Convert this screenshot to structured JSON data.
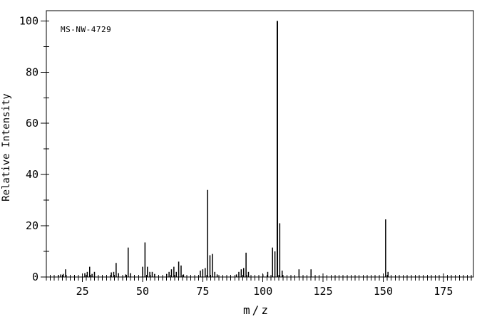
{
  "chart_data": {
    "type": "bar",
    "subtype": "mass-spectrum-stick-plot",
    "annotation": "MS-NW-4729",
    "xlabel": "m/z",
    "ylabel": "Relative Intensity",
    "xlim": [
      10,
      187.5
    ],
    "ylim": [
      0,
      104
    ],
    "x_major_ticks": [
      25,
      50,
      75,
      100,
      125,
      150,
      175
    ],
    "x_minor_tick_step": 1.6667,
    "y_major_ticks": [
      0,
      20,
      40,
      60,
      80,
      100
    ],
    "y_minor_ticks": [
      10,
      30,
      50,
      70,
      90
    ],
    "grid": "off",
    "legend": "none",
    "colors": {
      "foreground": "#000000",
      "background": "#ffffff"
    },
    "series": [
      {
        "name": "relative-intensity-vs-mz",
        "points": [
          [
            15,
            0.8
          ],
          [
            16,
            1
          ],
          [
            17,
            1.2
          ],
          [
            18,
            3
          ],
          [
            26,
            1.5
          ],
          [
            27,
            2
          ],
          [
            28,
            4
          ],
          [
            29,
            1.2
          ],
          [
            30,
            2
          ],
          [
            37,
            1.8
          ],
          [
            38,
            2
          ],
          [
            39,
            5.5
          ],
          [
            40,
            1.5
          ],
          [
            43,
            1
          ],
          [
            44,
            11.5
          ],
          [
            45,
            1.5
          ],
          [
            50,
            4
          ],
          [
            51,
            13.5
          ],
          [
            52,
            4
          ],
          [
            53,
            2
          ],
          [
            54,
            2
          ],
          [
            55,
            1.2
          ],
          [
            60,
            1.2
          ],
          [
            61,
            2
          ],
          [
            62,
            3
          ],
          [
            63,
            4
          ],
          [
            64,
            2
          ],
          [
            65,
            6
          ],
          [
            66,
            4.5
          ],
          [
            67,
            1
          ],
          [
            74,
            2.5
          ],
          [
            75,
            3
          ],
          [
            76,
            3.5
          ],
          [
            77,
            34
          ],
          [
            78,
            8.5
          ],
          [
            79,
            9
          ],
          [
            80,
            2
          ],
          [
            81,
            1
          ],
          [
            89,
            1
          ],
          [
            90,
            2
          ],
          [
            91,
            3
          ],
          [
            92,
            3.5
          ],
          [
            93,
            9.5
          ],
          [
            94,
            2
          ],
          [
            100,
            1
          ],
          [
            102,
            2
          ],
          [
            104,
            11.5
          ],
          [
            105,
            10
          ],
          [
            106,
            100
          ],
          [
            107,
            21
          ],
          [
            108,
            2.5
          ],
          [
            115,
            3
          ],
          [
            120,
            3
          ],
          [
            151,
            22.5
          ],
          [
            152,
            2
          ]
        ]
      }
    ]
  }
}
